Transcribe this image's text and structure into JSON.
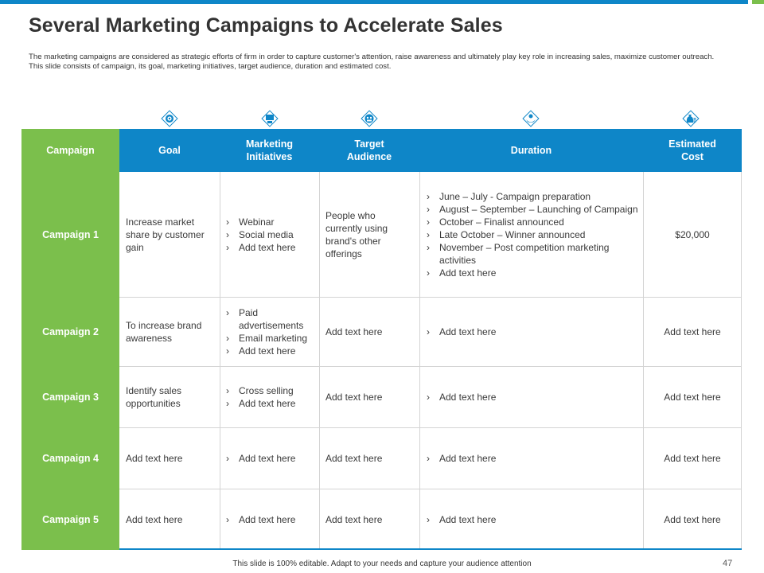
{
  "slide": {
    "title": "Several Marketing Campaigns to Accelerate Sales",
    "description": "The marketing campaigns are considered as strategic efforts of firm in order to capture customer's attention, raise awareness and ultimately play key role in increasing sales, maximize customer outreach. This slide consists of campaign, its goal, marketing initiatives, target audience, duration and estimated cost.",
    "footer": "This slide is 100% editable. Adapt to your needs and capture your audience attention",
    "page_number": "47"
  },
  "colors": {
    "accent_blue": "#0e86c8",
    "accent_green": "#7bbf4c"
  },
  "icons": [
    "target-icon",
    "presentation-icon",
    "audience-icon",
    "hand-coin-icon",
    "money-bag-icon"
  ],
  "table": {
    "headers": {
      "campaign": "Campaign",
      "goal": "Goal",
      "initiatives": "Marketing Initiatives",
      "audience": "Target Audience",
      "duration": "Duration",
      "cost": "Estimated Cost"
    },
    "rows": [
      {
        "campaign": "Campaign 1",
        "goal": "Increase market share by customer gain",
        "initiatives": [
          "Webinar",
          "Social media",
          "Add text here"
        ],
        "audience": "People who currently using brand's other offerings",
        "duration": [
          "June – July - Campaign preparation",
          "August – September – Launching of Campaign",
          "October –  Finalist announced",
          "Late October – Winner announced",
          "November  – Post competition marketing activities",
          "Add text here"
        ],
        "cost": "$20,000"
      },
      {
        "campaign": "Campaign 2",
        "goal": "To increase brand awareness",
        "initiatives": [
          "Paid advertisements",
          "Email marketing",
          "Add text here"
        ],
        "audience": "Add text here",
        "duration": [
          "Add text here"
        ],
        "cost": "Add text here"
      },
      {
        "campaign": "Campaign 3",
        "goal": "Identify sales opportunities",
        "initiatives": [
          "Cross selling",
          "Add text here"
        ],
        "audience": "Add text here",
        "duration": [
          "Add text here"
        ],
        "cost": "Add text here"
      },
      {
        "campaign": "Campaign 4",
        "goal": "Add text here",
        "initiatives": [
          "Add text here"
        ],
        "audience": "Add text here",
        "duration": [
          "Add text here"
        ],
        "cost": "Add text here"
      },
      {
        "campaign": "Campaign 5",
        "goal": "Add text here",
        "initiatives": [
          "Add text here"
        ],
        "audience": "Add text here",
        "duration": [
          "Add text here"
        ],
        "cost": "Add text here"
      }
    ]
  }
}
